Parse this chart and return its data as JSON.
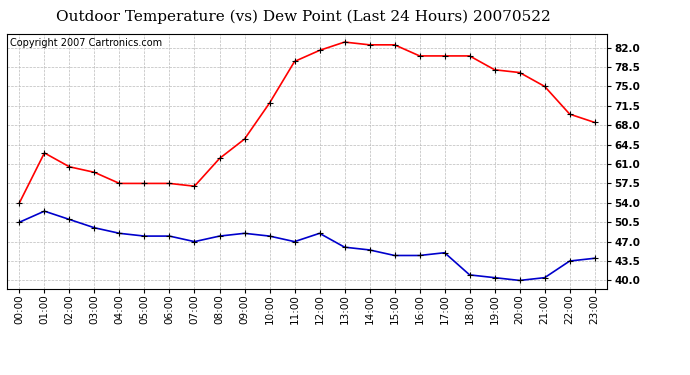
{
  "title": "Outdoor Temperature (vs) Dew Point (Last 24 Hours) 20070522",
  "copyright_text": "Copyright 2007 Cartronics.com",
  "x_labels": [
    "00:00",
    "01:00",
    "02:00",
    "03:00",
    "04:00",
    "05:00",
    "06:00",
    "07:00",
    "08:00",
    "09:00",
    "10:00",
    "11:00",
    "12:00",
    "13:00",
    "14:00",
    "15:00",
    "16:00",
    "17:00",
    "18:00",
    "19:00",
    "20:00",
    "21:00",
    "22:00",
    "23:00"
  ],
  "temp_data": [
    54.0,
    63.0,
    60.5,
    59.5,
    57.5,
    57.5,
    57.5,
    57.0,
    62.0,
    65.5,
    72.0,
    79.5,
    81.5,
    83.0,
    82.5,
    82.5,
    80.5,
    80.5,
    80.5,
    78.0,
    77.5,
    75.0,
    70.0,
    68.5
  ],
  "dew_data": [
    50.5,
    52.5,
    51.0,
    49.5,
    48.5,
    48.0,
    48.0,
    47.0,
    48.0,
    48.5,
    48.0,
    47.0,
    48.5,
    46.0,
    45.5,
    44.5,
    44.5,
    45.0,
    41.0,
    40.5,
    40.0,
    40.5,
    43.5,
    44.0
  ],
  "temp_color": "#ff0000",
  "dew_color": "#0000cc",
  "background_color": "#ffffff",
  "plot_bg_color": "#ffffff",
  "grid_color": "#bbbbbb",
  "ylim": [
    38.5,
    84.5
  ],
  "yticks": [
    40.0,
    43.5,
    47.0,
    50.5,
    54.0,
    57.5,
    61.0,
    64.5,
    68.0,
    71.5,
    75.0,
    78.5,
    82.0
  ],
  "title_fontsize": 11,
  "copyright_fontsize": 7,
  "tick_fontsize": 7.5,
  "marker": "+",
  "markersize": 5,
  "linewidth": 1.2
}
